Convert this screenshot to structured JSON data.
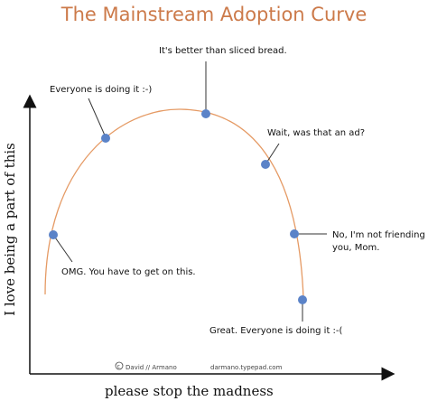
{
  "title": "The Mainstream Adoption Curve",
  "axes": {
    "x_label": "please stop the madness",
    "y_label": "I love being a part of this"
  },
  "annotations": [
    "OMG. You have to get on this.",
    "Everyone is doing it  :-)",
    "It's better than sliced bread.",
    "Wait, was that an ad?",
    "No, I'm not friending",
    "you, Mom.",
    "Great. Everyone is doing it :-("
  ],
  "credit": {
    "author": "David // Armano",
    "site": "darmano.typepad.com"
  },
  "colors": {
    "title": "#cc7a4a",
    "curve": "#e59a64",
    "dot": "#5b83c8",
    "axis": "#111111"
  }
}
